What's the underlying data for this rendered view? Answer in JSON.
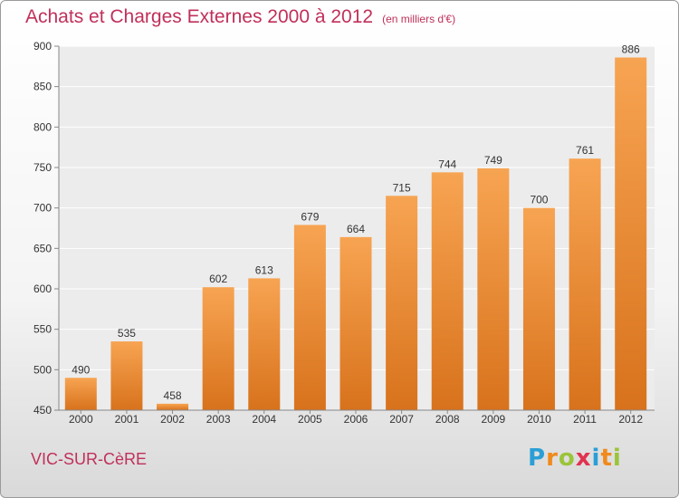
{
  "title": "Achats et Charges Externes 2000 à 2012",
  "subtitle": "(en milliers d'€)",
  "city": "VIC-SUR-CèRE",
  "logo": {
    "letters": [
      "P",
      "r",
      "o",
      "x",
      "i",
      "t",
      "i"
    ],
    "colors": [
      "#2a9fd6",
      "#f08a1c",
      "#9bc43a",
      "#e0334f",
      "#2a9fd6",
      "#f08a1c",
      "#9bc43a"
    ]
  },
  "colors": {
    "bar_light": "#f7a452",
    "bar_dark": "#d8721c",
    "text_accent": "#c0305a"
  },
  "chart_data": {
    "type": "bar",
    "categories": [
      "2000",
      "2001",
      "2002",
      "2003",
      "2004",
      "2005",
      "2006",
      "2007",
      "2008",
      "2009",
      "2010",
      "2011",
      "2012"
    ],
    "values": [
      490,
      535,
      458,
      602,
      613,
      679,
      664,
      715,
      744,
      749,
      700,
      761,
      886
    ],
    "ylim": [
      450,
      900
    ],
    "yticks": [
      450,
      500,
      550,
      600,
      650,
      700,
      750,
      800,
      850,
      900
    ],
    "grid": true,
    "data_labels": true
  }
}
